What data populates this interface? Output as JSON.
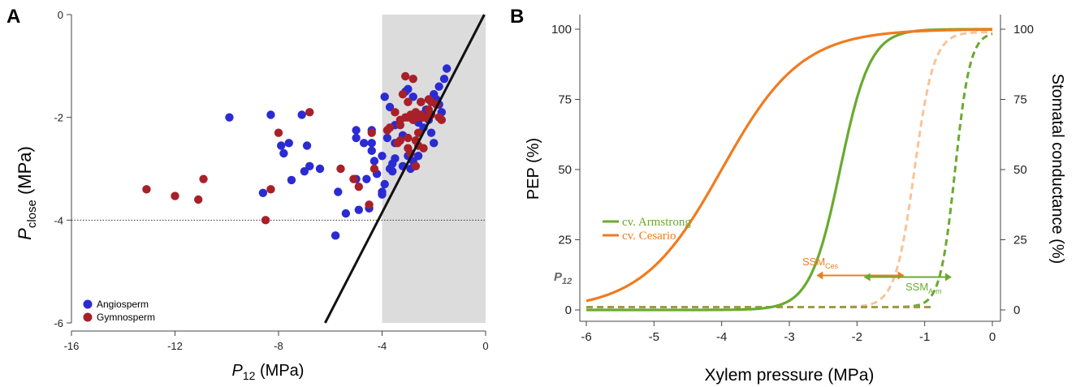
{
  "panel_a": {
    "label": "A",
    "ylabel_main": "P",
    "ylabel_sub": "close",
    "ylabel_unit": " (MPa)",
    "xlabel_main": "P",
    "xlabel_sub": "12",
    "xlabel_unit": " (MPa)",
    "legend": [
      "Angiosperm",
      "Gymnosperm"
    ]
  },
  "panel_b": {
    "label": "B",
    "ylabel_left": "PEP (%)",
    "ylabel_right": "Stomatal conductance (%)",
    "xlabel": "Xylem pressure (MPa)",
    "p12_label": "P",
    "p12_sub": "12",
    "legend": [
      "cv. Armstrong",
      "cv. Cesario"
    ],
    "ssm_ces_main": "SSM",
    "ssm_ces_sub": "Ces",
    "ssm_arm_main": "SSM",
    "ssm_arm_sub": "Arm"
  },
  "chart_data": [
    {
      "type": "scatter",
      "xlim": [
        -16,
        0
      ],
      "ylim": [
        -6,
        0
      ],
      "xticks": [
        "-16",
        "-12",
        "-8",
        "-4",
        "0"
      ],
      "yticks": [
        "0",
        "-2",
        "-4",
        "-6"
      ],
      "colors": {
        "Angiosperm": "#2b2bd4",
        "Gymnosperm": "#a8202a"
      },
      "shaded_region": [
        -4,
        0
      ],
      "hline": -4,
      "line": {
        "x": [
          -6.2,
          -0.05
        ],
        "y": [
          -6,
          0
        ]
      },
      "series": [
        {
          "name": "Angiosperm",
          "points": [
            [
              -9.9,
              -2.0
            ],
            [
              -8.3,
              -1.95
            ],
            [
              -7.1,
              -1.95
            ],
            [
              -7.9,
              -2.55
            ],
            [
              -7.6,
              -2.5
            ],
            [
              -7.8,
              -2.7
            ],
            [
              -6.9,
              -2.55
            ],
            [
              -7.0,
              -3.05
            ],
            [
              -6.8,
              -2.95
            ],
            [
              -6.4,
              -3.0
            ],
            [
              -8.6,
              -3.47
            ],
            [
              -7.5,
              -3.22
            ],
            [
              -5.7,
              -3.45
            ],
            [
              -5.4,
              -3.87
            ],
            [
              -5.8,
              -4.3
            ],
            [
              -4.5,
              -3.77
            ],
            [
              -4.9,
              -3.8
            ],
            [
              -4.6,
              -3.2
            ],
            [
              -5.0,
              -3.2
            ],
            [
              -4.0,
              -3.5
            ],
            [
              -5.0,
              -2.25
            ],
            [
              -5.0,
              -2.4
            ],
            [
              -4.7,
              -2.5
            ],
            [
              -4.4,
              -2.25
            ],
            [
              -4.4,
              -2.5
            ],
            [
              -4.4,
              -2.65
            ],
            [
              -4.3,
              -2.85
            ],
            [
              -4.0,
              -2.75
            ],
            [
              -4.2,
              -3.1
            ],
            [
              -3.9,
              -3.3
            ],
            [
              -4.0,
              -3.45
            ],
            [
              -3.5,
              -2.8
            ],
            [
              -3.6,
              -3.05
            ],
            [
              -3.6,
              -2.9
            ],
            [
              -3.7,
              -3.0
            ],
            [
              -3.9,
              -1.6
            ],
            [
              -3.7,
              -1.8
            ],
            [
              -3.5,
              -2.15
            ],
            [
              -3.8,
              -2.4
            ],
            [
              -3.5,
              -2.5
            ],
            [
              -3.2,
              -2.35
            ],
            [
              -3.0,
              -2.75
            ],
            [
              -2.8,
              -2.85
            ],
            [
              -2.6,
              -2.75
            ],
            [
              -2.9,
              -3.0
            ],
            [
              -3.0,
              -1.45
            ],
            [
              -2.8,
              -1.6
            ],
            [
              -2.5,
              -1.7
            ],
            [
              -2.3,
              -1.85
            ],
            [
              -2.2,
              -2.05
            ],
            [
              -2.6,
              -2.1
            ],
            [
              -2.4,
              -2.2
            ],
            [
              -2.1,
              -2.3
            ],
            [
              -2.0,
              -2.5
            ],
            [
              -1.9,
              -1.65
            ],
            [
              -1.8,
              -1.4
            ],
            [
              -1.6,
              -1.25
            ],
            [
              -1.5,
              -1.05
            ],
            [
              -1.8,
              -1.75
            ],
            [
              -2.0,
              -1.55
            ],
            [
              -3.1,
              -1.5
            ],
            [
              -3.2,
              -2.95
            ],
            [
              -2.6,
              -2.05
            ],
            [
              -1.7,
              -1.9
            ]
          ]
        },
        {
          "name": "Gymnosperm",
          "points": [
            [
              -13.1,
              -3.4
            ],
            [
              -12.0,
              -3.53
            ],
            [
              -11.1,
              -3.6
            ],
            [
              -10.9,
              -3.2
            ],
            [
              -8.3,
              -3.4
            ],
            [
              -8.5,
              -4.0
            ],
            [
              -8.0,
              -2.3
            ],
            [
              -6.8,
              -1.9
            ],
            [
              -5.6,
              -3.0
            ],
            [
              -5.1,
              -3.2
            ],
            [
              -4.9,
              -3.35
            ],
            [
              -4.5,
              -3.7
            ],
            [
              -4.3,
              -3.0
            ],
            [
              -4.4,
              -2.3
            ],
            [
              -3.8,
              -2.25
            ],
            [
              -3.7,
              -2.2
            ],
            [
              -3.5,
              -1.9
            ],
            [
              -3.3,
              -2.05
            ],
            [
              -3.3,
              -2.15
            ],
            [
              -3.4,
              -2.5
            ],
            [
              -3.3,
              -2.45
            ],
            [
              -3.1,
              -2.0
            ],
            [
              -3.0,
              -2.0
            ],
            [
              -2.9,
              -1.95
            ],
            [
              -2.8,
              -2.05
            ],
            [
              -2.6,
              -2.0
            ],
            [
              -2.5,
              -1.95
            ],
            [
              -2.5,
              -1.7
            ],
            [
              -2.4,
              -2.0
            ],
            [
              -3.1,
              -1.2
            ],
            [
              -2.8,
              -1.25
            ],
            [
              -3.0,
              -2.4
            ],
            [
              -3.0,
              -2.6
            ],
            [
              -2.7,
              -2.45
            ],
            [
              -2.6,
              -2.55
            ],
            [
              -2.4,
              -2.6
            ],
            [
              -2.7,
              -2.95
            ],
            [
              -2.6,
              -2.3
            ],
            [
              -2.3,
              -2.0
            ],
            [
              -2.1,
              -1.7
            ],
            [
              -1.9,
              -1.75
            ],
            [
              -1.8,
              -2.0
            ],
            [
              -1.7,
              -2.05
            ],
            [
              -2.2,
              -1.65
            ],
            [
              -3.0,
              -1.7
            ],
            [
              -3.2,
              -1.55
            ],
            [
              -2.9,
              -2.7
            ],
            [
              -2.7,
              -1.9
            ],
            [
              -2.1,
              -1.95
            ],
            [
              -2.2,
              -1.85
            ]
          ]
        }
      ]
    },
    {
      "type": "line",
      "xlim": [
        -6,
        0
      ],
      "ylim": [
        0,
        100
      ],
      "xticks": [
        "-6",
        "-5",
        "-4",
        "-3",
        "-2",
        "-1",
        "0"
      ],
      "yticks_left": [
        "0",
        "25",
        "50",
        "75",
        "100"
      ],
      "yticks_right": [
        "0",
        "25",
        "50",
        "75",
        "100"
      ],
      "p12_level": 12,
      "colors": {
        "cv. Armstrong": "#6aaa30",
        "cv. Cesario": "#f07b20"
      },
      "series": [
        {
          "name": "cv. Armstrong",
          "curve": "PEP",
          "style": "solid",
          "p50": -2.25,
          "slope": 4.5
        },
        {
          "name": "cv. Cesario",
          "curve": "PEP",
          "style": "solid",
          "p50": -4.0,
          "slope": 1.7
        },
        {
          "name": "cv. Armstrong",
          "curve": "stomatal conductance",
          "style": "dashed",
          "p50": -0.55,
          "slope": 9.0
        },
        {
          "name": "cv. Cesario",
          "curve": "stomatal conductance",
          "style": "dashed",
          "p50": -1.15,
          "slope": 7.0
        }
      ],
      "arrows": [
        {
          "name": "SSM Ces",
          "from": -2.6,
          "to": -1.3,
          "y": 12
        },
        {
          "name": "SSM Arm",
          "from": -1.9,
          "to": -0.6,
          "y": 12
        }
      ]
    }
  ]
}
